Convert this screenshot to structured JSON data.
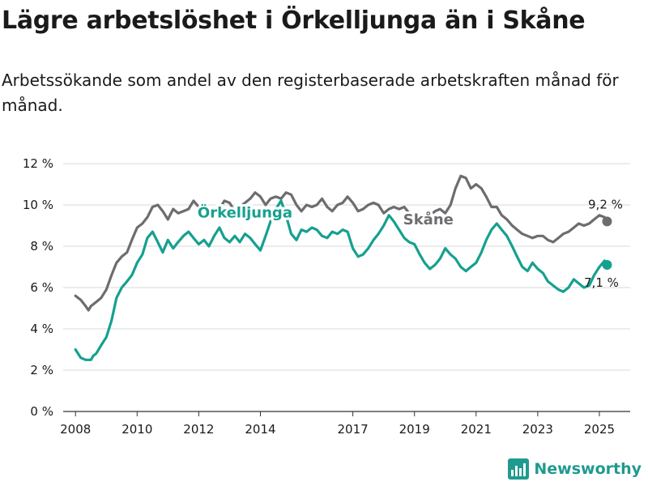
{
  "title": "Lägre arbetslöshet i Örkelljunga än i Skåne",
  "subtitle": "Arbetssökande som andel av den registerbaserade arbetskraften månad för månad.",
  "brand": "Newsworthy",
  "chart_data": {
    "type": "line",
    "xlim": [
      2007.6,
      2026.0
    ],
    "ylim": [
      0,
      12
    ],
    "y_ticks": [
      0,
      2,
      4,
      6,
      8,
      10,
      12
    ],
    "y_tick_labels": [
      "0 %",
      "2 %",
      "4 %",
      "6 %",
      "8 %",
      "10 %",
      "12 %"
    ],
    "x_ticks": [
      2008,
      2010,
      2012,
      2014,
      2017,
      2019,
      2021,
      2023,
      2025
    ],
    "x_tick_labels": [
      "2008",
      "2010",
      "2012",
      "2014",
      "2017",
      "2019",
      "2021",
      "2023",
      "2025"
    ],
    "grid": true,
    "series": [
      {
        "name": "Skåne",
        "color": "#6d6d70",
        "end_label": "9,2 %",
        "points": [
          [
            2008.0,
            5.6
          ],
          [
            2008.17,
            5.4
          ],
          [
            2008.33,
            5.1
          ],
          [
            2008.42,
            4.9
          ],
          [
            2008.5,
            5.1
          ],
          [
            2008.67,
            5.3
          ],
          [
            2008.83,
            5.5
          ],
          [
            2009.0,
            5.9
          ],
          [
            2009.17,
            6.6
          ],
          [
            2009.33,
            7.2
          ],
          [
            2009.5,
            7.5
          ],
          [
            2009.67,
            7.7
          ],
          [
            2009.83,
            8.3
          ],
          [
            2010.0,
            8.9
          ],
          [
            2010.17,
            9.1
          ],
          [
            2010.33,
            9.4
          ],
          [
            2010.5,
            9.9
          ],
          [
            2010.67,
            10.0
          ],
          [
            2010.83,
            9.7
          ],
          [
            2011.0,
            9.3
          ],
          [
            2011.17,
            9.8
          ],
          [
            2011.33,
            9.6
          ],
          [
            2011.5,
            9.7
          ],
          [
            2011.67,
            9.8
          ],
          [
            2011.83,
            10.2
          ],
          [
            2012.0,
            9.9
          ],
          [
            2012.17,
            9.4
          ],
          [
            2012.33,
            9.8
          ],
          [
            2012.5,
            9.7
          ],
          [
            2012.67,
            9.8
          ],
          [
            2012.83,
            10.2
          ],
          [
            2013.0,
            10.1
          ],
          [
            2013.17,
            9.7
          ],
          [
            2013.33,
            9.9
          ],
          [
            2013.5,
            10.1
          ],
          [
            2013.67,
            10.3
          ],
          [
            2013.83,
            10.6
          ],
          [
            2014.0,
            10.4
          ],
          [
            2014.17,
            10.0
          ],
          [
            2014.33,
            10.3
          ],
          [
            2014.5,
            10.4
          ],
          [
            2014.67,
            10.3
          ],
          [
            2014.83,
            10.6
          ],
          [
            2015.0,
            10.5
          ],
          [
            2015.17,
            10.0
          ],
          [
            2015.33,
            9.7
          ],
          [
            2015.5,
            10.0
          ],
          [
            2015.67,
            9.9
          ],
          [
            2015.83,
            10.0
          ],
          [
            2016.0,
            10.3
          ],
          [
            2016.17,
            9.9
          ],
          [
            2016.33,
            9.7
          ],
          [
            2016.5,
            10.0
          ],
          [
            2016.67,
            10.1
          ],
          [
            2016.83,
            10.4
          ],
          [
            2017.0,
            10.1
          ],
          [
            2017.17,
            9.7
          ],
          [
            2017.33,
            9.8
          ],
          [
            2017.5,
            10.0
          ],
          [
            2017.67,
            10.1
          ],
          [
            2017.83,
            10.0
          ],
          [
            2018.0,
            9.6
          ],
          [
            2018.17,
            9.8
          ],
          [
            2018.33,
            9.9
          ],
          [
            2018.5,
            9.8
          ],
          [
            2018.67,
            9.9
          ],
          [
            2018.83,
            9.6
          ],
          [
            2019.0,
            9.1
          ],
          [
            2019.17,
            9.0
          ],
          [
            2019.33,
            9.3
          ],
          [
            2019.5,
            9.5
          ],
          [
            2019.67,
            9.7
          ],
          [
            2019.83,
            9.8
          ],
          [
            2020.0,
            9.6
          ],
          [
            2020.17,
            10.0
          ],
          [
            2020.33,
            10.8
          ],
          [
            2020.5,
            11.4
          ],
          [
            2020.67,
            11.3
          ],
          [
            2020.83,
            10.8
          ],
          [
            2021.0,
            11.0
          ],
          [
            2021.17,
            10.8
          ],
          [
            2021.33,
            10.4
          ],
          [
            2021.5,
            9.9
          ],
          [
            2021.67,
            9.9
          ],
          [
            2021.83,
            9.5
          ],
          [
            2022.0,
            9.3
          ],
          [
            2022.17,
            9.0
          ],
          [
            2022.33,
            8.8
          ],
          [
            2022.5,
            8.6
          ],
          [
            2022.67,
            8.5
          ],
          [
            2022.83,
            8.4
          ],
          [
            2023.0,
            8.5
          ],
          [
            2023.17,
            8.5
          ],
          [
            2023.33,
            8.3
          ],
          [
            2023.5,
            8.2
          ],
          [
            2023.67,
            8.4
          ],
          [
            2023.83,
            8.6
          ],
          [
            2024.0,
            8.7
          ],
          [
            2024.17,
            8.9
          ],
          [
            2024.33,
            9.1
          ],
          [
            2024.5,
            9.0
          ],
          [
            2024.67,
            9.1
          ],
          [
            2024.83,
            9.3
          ],
          [
            2025.0,
            9.5
          ],
          [
            2025.17,
            9.4
          ],
          [
            2025.25,
            9.2
          ]
        ]
      },
      {
        "name": "Örkelljunga",
        "color": "#16a08f",
        "end_label": "7,1 %",
        "points": [
          [
            2008.0,
            3.0
          ],
          [
            2008.17,
            2.6
          ],
          [
            2008.33,
            2.5
          ],
          [
            2008.5,
            2.5
          ],
          [
            2008.58,
            2.7
          ],
          [
            2008.67,
            2.8
          ],
          [
            2008.83,
            3.2
          ],
          [
            2009.0,
            3.6
          ],
          [
            2009.17,
            4.4
          ],
          [
            2009.33,
            5.5
          ],
          [
            2009.5,
            6.0
          ],
          [
            2009.67,
            6.3
          ],
          [
            2009.83,
            6.6
          ],
          [
            2010.0,
            7.2
          ],
          [
            2010.17,
            7.6
          ],
          [
            2010.33,
            8.4
          ],
          [
            2010.5,
            8.7
          ],
          [
            2010.67,
            8.2
          ],
          [
            2010.83,
            7.7
          ],
          [
            2011.0,
            8.3
          ],
          [
            2011.17,
            7.9
          ],
          [
            2011.33,
            8.2
          ],
          [
            2011.5,
            8.5
          ],
          [
            2011.67,
            8.7
          ],
          [
            2011.83,
            8.4
          ],
          [
            2012.0,
            8.1
          ],
          [
            2012.17,
            8.3
          ],
          [
            2012.33,
            8.0
          ],
          [
            2012.5,
            8.5
          ],
          [
            2012.67,
            8.9
          ],
          [
            2012.83,
            8.4
          ],
          [
            2013.0,
            8.2
          ],
          [
            2013.17,
            8.5
          ],
          [
            2013.33,
            8.2
          ],
          [
            2013.5,
            8.6
          ],
          [
            2013.67,
            8.4
          ],
          [
            2013.83,
            8.1
          ],
          [
            2014.0,
            7.8
          ],
          [
            2014.17,
            8.5
          ],
          [
            2014.33,
            9.2
          ],
          [
            2014.5,
            9.8
          ],
          [
            2014.67,
            10.2
          ],
          [
            2014.83,
            9.5
          ],
          [
            2015.0,
            8.6
          ],
          [
            2015.17,
            8.3
          ],
          [
            2015.33,
            8.8
          ],
          [
            2015.5,
            8.7
          ],
          [
            2015.67,
            8.9
          ],
          [
            2015.83,
            8.8
          ],
          [
            2016.0,
            8.5
          ],
          [
            2016.17,
            8.4
          ],
          [
            2016.33,
            8.7
          ],
          [
            2016.5,
            8.6
          ],
          [
            2016.67,
            8.8
          ],
          [
            2016.83,
            8.7
          ],
          [
            2017.0,
            7.9
          ],
          [
            2017.17,
            7.5
          ],
          [
            2017.33,
            7.6
          ],
          [
            2017.5,
            7.9
          ],
          [
            2017.67,
            8.3
          ],
          [
            2017.83,
            8.6
          ],
          [
            2018.0,
            9.0
          ],
          [
            2018.17,
            9.5
          ],
          [
            2018.33,
            9.2
          ],
          [
            2018.5,
            8.8
          ],
          [
            2018.67,
            8.4
          ],
          [
            2018.83,
            8.2
          ],
          [
            2019.0,
            8.1
          ],
          [
            2019.17,
            7.6
          ],
          [
            2019.33,
            7.2
          ],
          [
            2019.5,
            6.9
          ],
          [
            2019.67,
            7.1
          ],
          [
            2019.83,
            7.4
          ],
          [
            2020.0,
            7.9
          ],
          [
            2020.17,
            7.6
          ],
          [
            2020.33,
            7.4
          ],
          [
            2020.5,
            7.0
          ],
          [
            2020.67,
            6.8
          ],
          [
            2020.83,
            7.0
          ],
          [
            2021.0,
            7.2
          ],
          [
            2021.17,
            7.7
          ],
          [
            2021.33,
            8.3
          ],
          [
            2021.5,
            8.8
          ],
          [
            2021.67,
            9.1
          ],
          [
            2021.83,
            8.8
          ],
          [
            2022.0,
            8.5
          ],
          [
            2022.17,
            8.0
          ],
          [
            2022.33,
            7.5
          ],
          [
            2022.5,
            7.0
          ],
          [
            2022.67,
            6.8
          ],
          [
            2022.83,
            7.2
          ],
          [
            2023.0,
            6.9
          ],
          [
            2023.17,
            6.7
          ],
          [
            2023.33,
            6.3
          ],
          [
            2023.5,
            6.1
          ],
          [
            2023.67,
            5.9
          ],
          [
            2023.83,
            5.8
          ],
          [
            2024.0,
            6.0
          ],
          [
            2024.17,
            6.4
          ],
          [
            2024.33,
            6.2
          ],
          [
            2024.5,
            6.0
          ],
          [
            2024.67,
            6.1
          ],
          [
            2024.83,
            6.6
          ],
          [
            2025.0,
            7.0
          ],
          [
            2025.17,
            7.3
          ],
          [
            2025.25,
            7.1
          ]
        ]
      }
    ]
  }
}
